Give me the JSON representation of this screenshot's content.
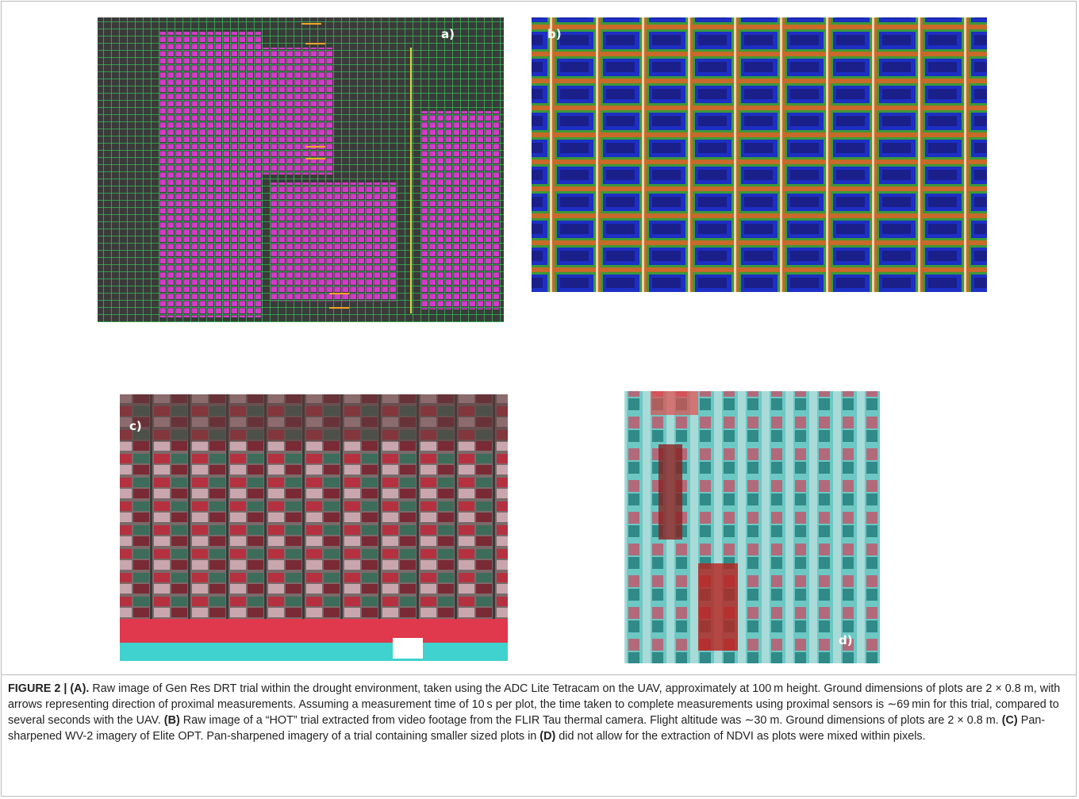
{
  "panels": {
    "a": "a)",
    "b": "b)",
    "c": "c)",
    "d": "d)"
  },
  "caption": {
    "segments": [
      "FIGURE 2 | (A).",
      " Raw image of Gen Res DRT trial within the drought environment, taken using the ADC Lite Tetracam on the UAV, approximately at 100 m height. Ground dimensions of plots are 2 × 0.8 m, with arrows representing direction of proximal measurements. Assuming a measurement time of 10 s per plot, the time taken to complete measurements using proximal sensors is ∼69 min for this trial, compared to several seconds with the UAV. ",
      "(B)",
      " Raw image of a “HOT” trial extracted from video footage from the FLIR Tau thermal camera. Flight altitude was ∼30 m. Ground dimensions of plots are 2 × 0.8 m. ",
      "(C)",
      " Pan-sharpened WV-2 imagery of Elite OPT. Pan-sharpened imagery of a trial containing smaller sized plots in ",
      "(D)",
      " did not allow for the extraction of NDVI as plots were mixed within pixels."
    ]
  }
}
